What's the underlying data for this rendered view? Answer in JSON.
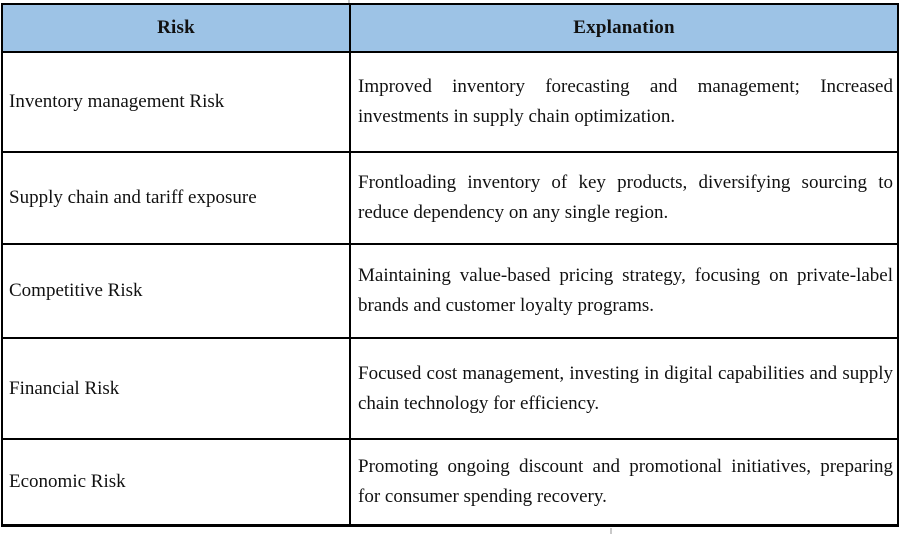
{
  "table": {
    "headers": [
      {
        "label": "Risk"
      },
      {
        "label": "Explanation"
      }
    ],
    "rows": [
      {
        "risk": "Inventory management Risk",
        "explanation": "Improved inventory forecasting and management; Increased investments in supply chain optimization."
      },
      {
        "risk": "Supply chain and tariff exposure",
        "explanation": "Frontloading inventory of key products, diversifying sourcing to reduce dependency on any single region."
      },
      {
        "risk": "Competitive Risk",
        "explanation": "Maintaining value-based pricing strategy, focusing on private-label brands and customer loyalty programs."
      },
      {
        "risk": "Financial Risk",
        "explanation": "Focused cost management, investing in digital capabilities and supply chain technology for efficiency."
      },
      {
        "risk": "Economic Risk",
        "explanation": "Promoting ongoing discount and promotional initiatives, preparing for consumer spending recovery."
      }
    ],
    "colors": {
      "header_bg": "#9DC3E6",
      "border": "#000000",
      "text": "#111111"
    }
  }
}
